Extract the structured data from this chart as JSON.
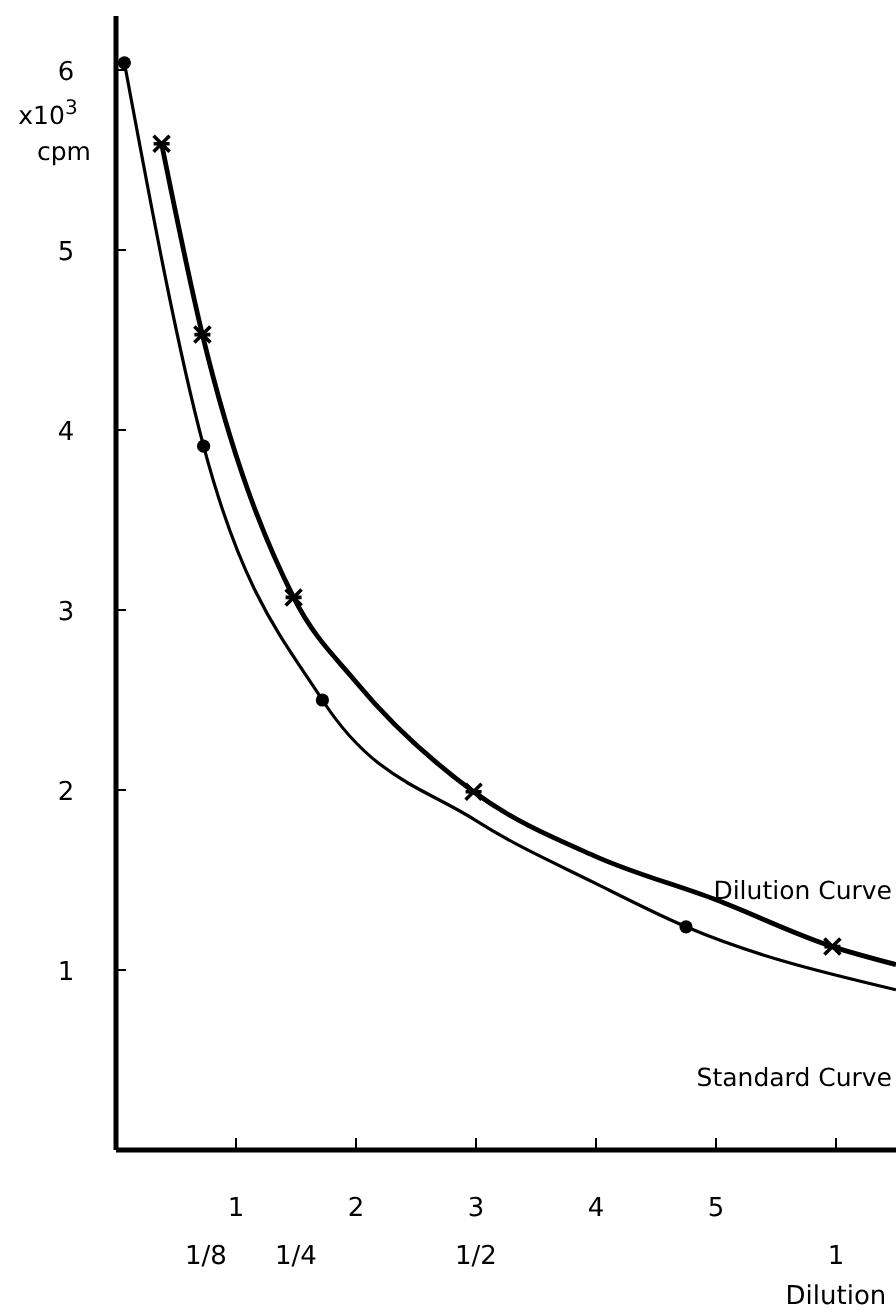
{
  "chart_data": {
    "type": "line",
    "ylabel": "x10$^{3}$ cpm",
    "x2label": "Dilution",
    "xlim": [
      0,
      6.5
    ],
    "xticks": [
      1,
      2,
      3,
      4,
      5,
      {
        "value": 6,
        "label": null
      }
    ],
    "x2lim": [
      0,
      1.0833
    ],
    "x2ticks": [
      {
        "value": 0.125,
        "label": "1/8"
      },
      {
        "value": 0.25,
        "label": "1/4"
      },
      {
        "value": 0.5,
        "label": "1/2"
      },
      1
    ],
    "ylim": [
      0,
      6.3
    ],
    "yticks": [
      {
        "value": 0,
        "label": null
      },
      1,
      2,
      3,
      4,
      5,
      6
    ],
    "grid": false,
    "tick_labels": "xy",
    "series": [
      {
        "name": "Dilution Curve",
        "type": "line",
        "color": "#000000",
        "marker": "none",
        "x": [
          0.38,
          0.72,
          1.48,
          2.0,
          2.98,
          4.0,
          5.0,
          5.97,
          6.5
        ],
        "values": [
          5.59,
          4.53,
          3.07,
          2.6,
          1.99,
          1.63,
          1.39,
          1.13,
          1.03
        ]
      },
      {
        "name": "Standard Curve",
        "type": "line",
        "color": "#000000",
        "marker": "none",
        "x": [
          0.07,
          0.73,
          1.72,
          3.0,
          4.0,
          4.75,
          6.5
        ],
        "values": [
          6.04,
          3.91,
          2.5,
          1.83,
          1.48,
          1.24,
          0.89
        ]
      },
      {
        "type": "scatter",
        "color": "#000000",
        "marker": "cross",
        "x": [
          0.38,
          0.72,
          1.48,
          2.98,
          5.97
        ],
        "values": [
          5.59,
          4.53,
          3.07,
          1.99,
          1.13
        ]
      },
      {
        "type": "scatter",
        "color": "#000000",
        "marker": "circle",
        "x": [
          0.07,
          0.73,
          1.72,
          4.75
        ],
        "values": [
          6.04,
          3.91,
          2.5,
          1.24
        ]
      }
    ]
  }
}
